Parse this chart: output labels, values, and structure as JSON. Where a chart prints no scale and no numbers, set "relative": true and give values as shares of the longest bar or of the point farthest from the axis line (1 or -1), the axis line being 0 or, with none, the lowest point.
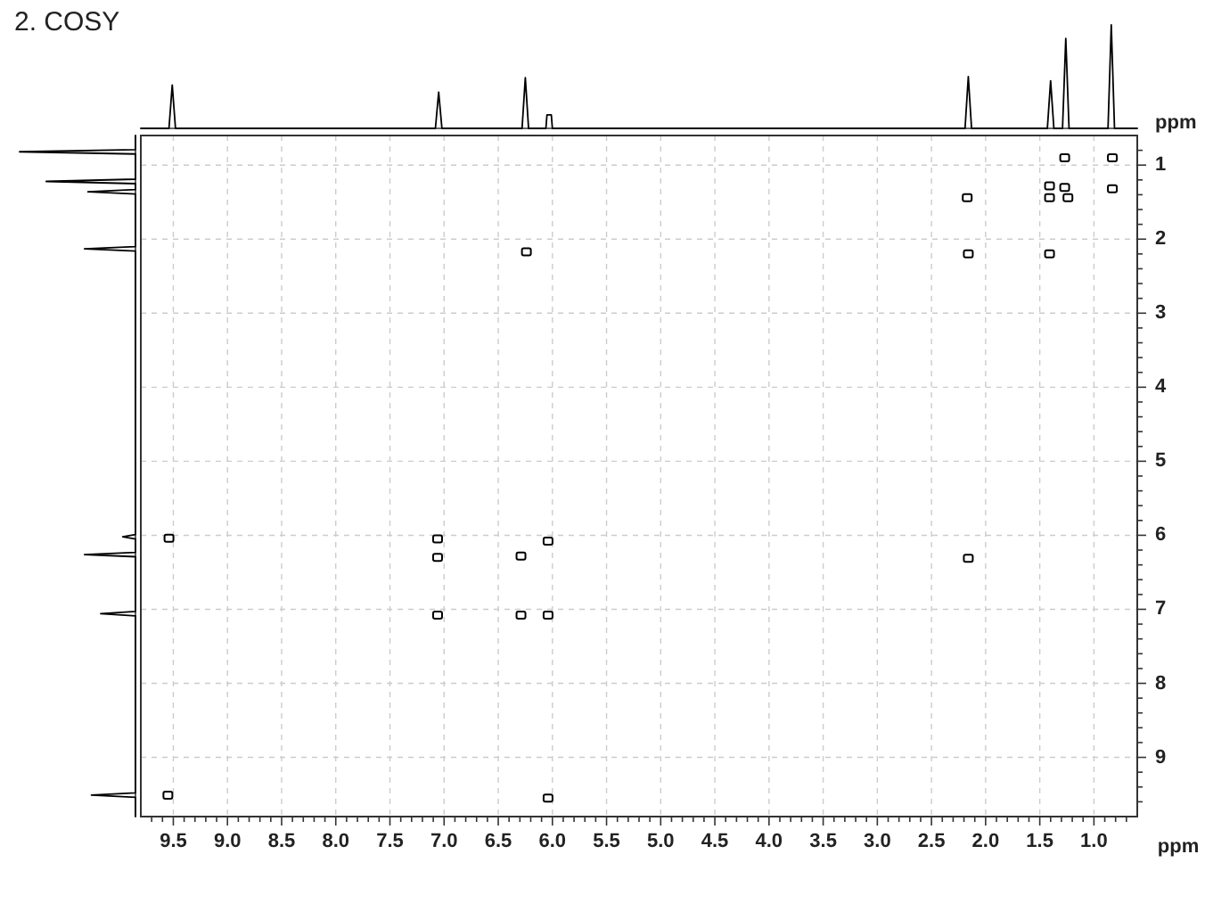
{
  "chart_data": [
    {
      "type": "line",
      "title": "2. COSY",
      "relative": true,
      "xlim": [
        9.8,
        0.6
      ],
      "x": [
        9.8,
        9.54,
        9.51,
        9.48,
        7.08,
        7.05,
        7.02,
        6.28,
        6.25,
        6.22,
        6.06,
        6.05,
        6.01,
        6.0,
        2.19,
        2.16,
        2.13,
        1.43,
        1.4,
        1.37,
        1.29,
        1.26,
        1.23,
        0.87,
        0.84,
        0.81,
        0.6
      ],
      "series": [
        {
          "color": "#000000",
          "values": [
            0,
            0,
            0.42,
            0,
            0,
            0.35,
            0,
            0,
            0.49,
            0,
            0,
            0.13,
            0.13,
            0,
            0,
            0.5,
            0,
            0,
            0.46,
            0,
            0,
            0.87,
            0,
            0,
            1,
            0,
            0
          ]
        }
      ]
    },
    {
      "type": "line",
      "orientation": "horizontal",
      "relative": true,
      "ylim": [
        9.8,
        0.6
      ],
      "x": [
        0.6,
        0.79,
        0.82,
        0.85,
        1.19,
        1.22,
        1.25,
        1.33,
        1.36,
        1.39,
        2.1,
        2.13,
        2.16,
        5.99,
        6.02,
        6.05,
        6.23,
        6.26,
        6.29,
        7.03,
        7.06,
        7.09,
        9.48,
        9.51,
        9.54,
        9.8
      ],
      "series": [
        {
          "color": "#000000",
          "values": [
            0,
            0,
            -1,
            0,
            0,
            -0.77,
            0,
            0,
            -0.41,
            0,
            0,
            -0.44,
            0,
            0,
            -0.11,
            0,
            0,
            -0.44,
            0,
            0,
            -0.3,
            0,
            0,
            -0.38,
            0,
            0
          ]
        }
      ]
    },
    {
      "type": "scatter",
      "xlabel": "ppm",
      "ylabel": "ppm",
      "xlim": [
        9.8,
        0.6
      ],
      "ylim": [
        9.8,
        0.6
      ],
      "xticks": [
        {
          "value": 9.7,
          "label": null
        },
        {
          "value": 9.6,
          "label": null
        },
        9.5,
        {
          "value": 9.4,
          "label": null
        },
        {
          "value": 9.3,
          "label": null
        },
        {
          "value": 9.2,
          "label": null
        },
        {
          "value": 9.1,
          "label": null
        },
        {
          "value": 9,
          "label": "9.0"
        },
        {
          "value": 8.9,
          "label": null
        },
        {
          "value": 8.8,
          "label": null
        },
        {
          "value": 8.7,
          "label": null
        },
        {
          "value": 8.6,
          "label": null
        },
        8.5,
        {
          "value": 8.4,
          "label": null
        },
        {
          "value": 8.3,
          "label": null
        },
        {
          "value": 8.2,
          "label": null
        },
        {
          "value": 8.1,
          "label": null
        },
        {
          "value": 8,
          "label": "8.0"
        },
        {
          "value": 7.9,
          "label": null
        },
        {
          "value": 7.8,
          "label": null
        },
        {
          "value": 7.7,
          "label": null
        },
        {
          "value": 7.6,
          "label": null
        },
        7.5,
        {
          "value": 7.4,
          "label": null
        },
        {
          "value": 7.3,
          "label": null
        },
        {
          "value": 7.2,
          "label": null
        },
        {
          "value": 7.1,
          "label": null
        },
        {
          "value": 7,
          "label": "7.0"
        },
        {
          "value": 6.9,
          "label": null
        },
        {
          "value": 6.8,
          "label": null
        },
        {
          "value": 6.7,
          "label": null
        },
        {
          "value": 6.6,
          "label": null
        },
        6.5,
        {
          "value": 6.4,
          "label": null
        },
        {
          "value": 6.3,
          "label": null
        },
        {
          "value": 6.2,
          "label": null
        },
        {
          "value": 6.1,
          "label": null
        },
        {
          "value": 6,
          "label": "6.0"
        },
        {
          "value": 5.9,
          "label": null
        },
        {
          "value": 5.8,
          "label": null
        },
        {
          "value": 5.7,
          "label": null
        },
        {
          "value": 5.6,
          "label": null
        },
        5.5,
        {
          "value": 5.4,
          "label": null
        },
        {
          "value": 5.3,
          "label": null
        },
        {
          "value": 5.2,
          "label": null
        },
        {
          "value": 5.1,
          "label": null
        },
        {
          "value": 5,
          "label": "5.0"
        },
        {
          "value": 4.9,
          "label": null
        },
        {
          "value": 4.8,
          "label": null
        },
        {
          "value": 4.7,
          "label": null
        },
        {
          "value": 4.6,
          "label": null
        },
        4.5,
        {
          "value": 4.4,
          "label": null
        },
        {
          "value": 4.3,
          "label": null
        },
        {
          "value": 4.2,
          "label": null
        },
        {
          "value": 4.1,
          "label": null
        },
        {
          "value": 4,
          "label": "4.0"
        },
        {
          "value": 3.9,
          "label": null
        },
        {
          "value": 3.8,
          "label": null
        },
        {
          "value": 3.7,
          "label": null
        },
        {
          "value": 3.6,
          "label": null
        },
        3.5,
        {
          "value": 3.4,
          "label": null
        },
        {
          "value": 3.3,
          "label": null
        },
        {
          "value": 3.2,
          "label": null
        },
        {
          "value": 3.1,
          "label": null
        },
        {
          "value": 3,
          "label": "3.0"
        },
        {
          "value": 2.9,
          "label": null
        },
        {
          "value": 2.8,
          "label": null
        },
        {
          "value": 2.7,
          "label": null
        },
        {
          "value": 2.6,
          "label": null
        },
        2.5,
        {
          "value": 2.4,
          "label": null
        },
        {
          "value": 2.3,
          "label": null
        },
        {
          "value": 2.2,
          "label": null
        },
        {
          "value": 2.1,
          "label": null
        },
        {
          "value": 2,
          "label": "2.0"
        },
        {
          "value": 1.9,
          "label": null
        },
        {
          "value": 1.8,
          "label": null
        },
        {
          "value": 1.7,
          "label": null
        },
        {
          "value": 1.6,
          "label": null
        },
        1.5,
        {
          "value": 1.4,
          "label": null
        },
        {
          "value": 1.3,
          "label": null
        },
        {
          "value": 1.2,
          "label": null
        },
        {
          "value": 1.1,
          "label": null
        },
        {
          "value": 1,
          "label": "1.0"
        },
        {
          "value": 0.9,
          "label": null
        },
        {
          "value": 0.8,
          "label": null
        },
        {
          "value": 0.7,
          "label": null
        }
      ],
      "yticks": [
        {
          "value": 0.8,
          "label": null
        },
        1,
        {
          "value": 1.2,
          "label": null
        },
        {
          "value": 1.4,
          "label": null
        },
        {
          "value": 1.6,
          "label": null
        },
        {
          "value": 1.8,
          "label": null
        },
        2,
        {
          "value": 2.2,
          "label": null
        },
        {
          "value": 2.4,
          "label": null
        },
        {
          "value": 2.6,
          "label": null
        },
        {
          "value": 2.8,
          "label": null
        },
        3,
        {
          "value": 3.2,
          "label": null
        },
        {
          "value": 3.4,
          "label": null
        },
        {
          "value": 3.6,
          "label": null
        },
        {
          "value": 3.8,
          "label": null
        },
        4,
        {
          "value": 4.2,
          "label": null
        },
        {
          "value": 4.4,
          "label": null
        },
        {
          "value": 4.6,
          "label": null
        },
        {
          "value": 4.8,
          "label": null
        },
        5,
        {
          "value": 5.2,
          "label": null
        },
        {
          "value": 5.4,
          "label": null
        },
        {
          "value": 5.6,
          "label": null
        },
        {
          "value": 5.8,
          "label": null
        },
        6,
        {
          "value": 6.2,
          "label": null
        },
        {
          "value": 6.4,
          "label": null
        },
        {
          "value": 6.6,
          "label": null
        },
        {
          "value": 6.8,
          "label": null
        },
        7,
        {
          "value": 7.2,
          "label": null
        },
        {
          "value": 7.4,
          "label": null
        },
        {
          "value": 7.6,
          "label": null
        },
        {
          "value": 7.8,
          "label": null
        },
        8,
        {
          "value": 8.2,
          "label": null
        },
        {
          "value": 8.4,
          "label": null
        },
        {
          "value": 8.6,
          "label": null
        },
        {
          "value": 8.8,
          "label": null
        },
        9,
        {
          "value": 9.2,
          "label": null
        },
        {
          "value": 9.4,
          "label": null
        },
        {
          "value": 9.6,
          "label": null
        }
      ],
      "grid": true,
      "marker": "square",
      "x": [
        0.83,
        1.27,
        2.17,
        1.41,
        1.27,
        1.41,
        1.24,
        0.83,
        2.16,
        1.41,
        6.24,
        9.54,
        7.06,
        7.06,
        7.06,
        6.29,
        6.04,
        6.29,
        6.04,
        9.55,
        6.04,
        2.16
      ],
      "series": [
        {
          "color": "#000000",
          "values": [
            0.9,
            0.9,
            1.44,
            1.28,
            1.3,
            1.44,
            1.44,
            1.32,
            2.2,
            2.2,
            2.17,
            6.04,
            6.05,
            6.3,
            7.08,
            6.28,
            6.08,
            7.08,
            7.08,
            9.51,
            9.55,
            6.31
          ]
        }
      ]
    }
  ]
}
